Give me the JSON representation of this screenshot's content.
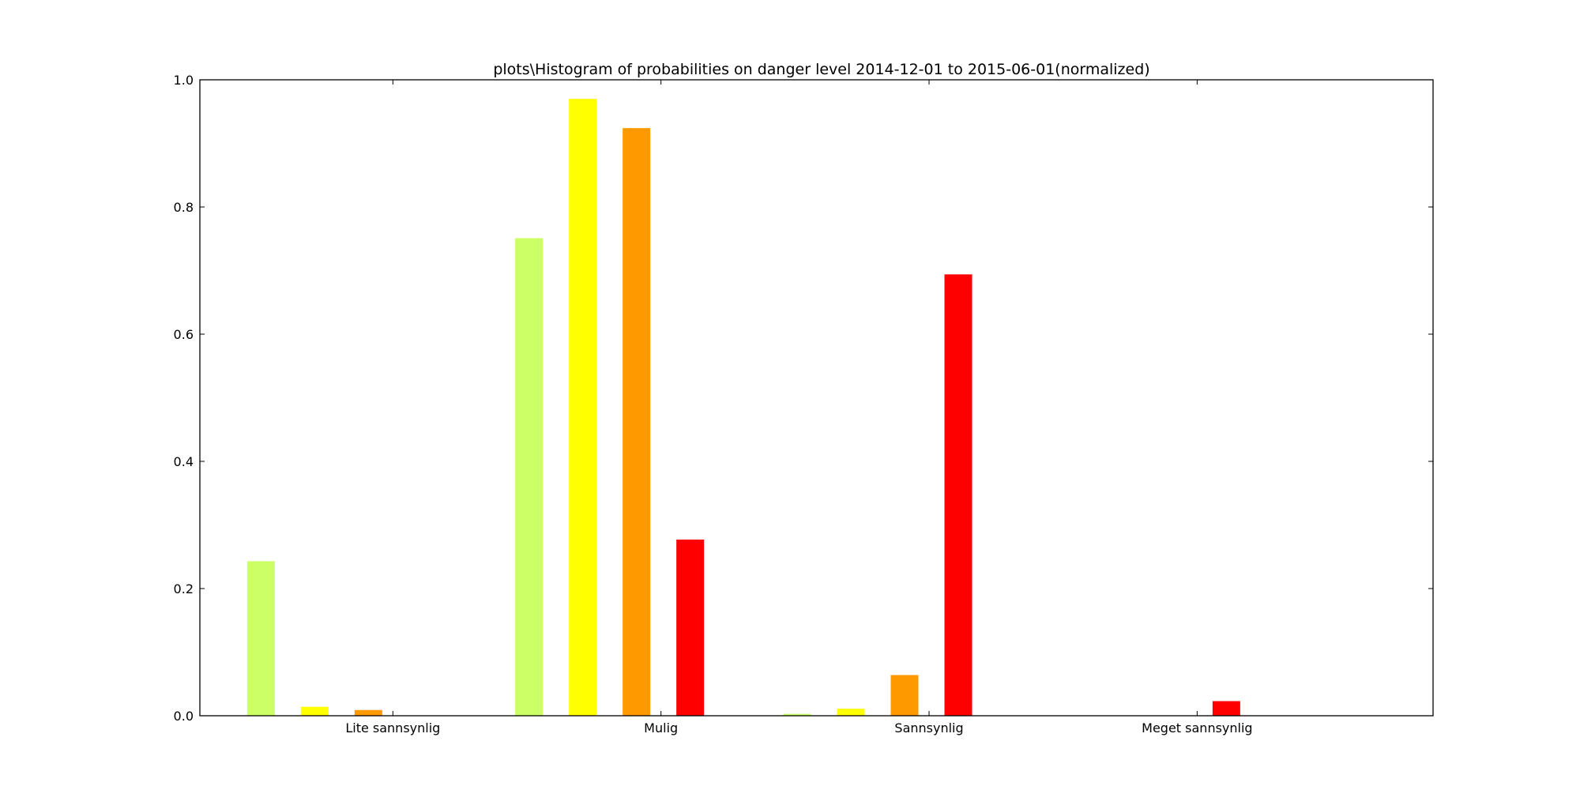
{
  "chart_data": {
    "type": "bar",
    "title": "plots\\Histogram of probabilities on danger level 2014-12-01 to 2015-06-01(normalized)",
    "xlabel": "",
    "ylabel": "",
    "categories": [
      "Lite sannsynlig",
      "Mulig",
      "Sannsynlig",
      "Meget sannsynlig"
    ],
    "ylim": [
      0,
      1.0
    ],
    "yticks": [
      "0.0",
      "0.2",
      "0.4",
      "0.6",
      "0.8",
      "1.0"
    ],
    "grid": false,
    "series": [
      {
        "color": "#ccff66",
        "values": [
          0.243,
          0.751,
          0.003,
          0.0
        ]
      },
      {
        "color": "#ffff00",
        "values": [
          0.014,
          0.97,
          0.011,
          0.0
        ]
      },
      {
        "color": "#ff9900",
        "values": [
          0.009,
          0.924,
          0.064,
          0.0
        ]
      },
      {
        "color": "#ff0000",
        "values": [
          0.0,
          0.277,
          0.694,
          0.023
        ]
      }
    ]
  }
}
